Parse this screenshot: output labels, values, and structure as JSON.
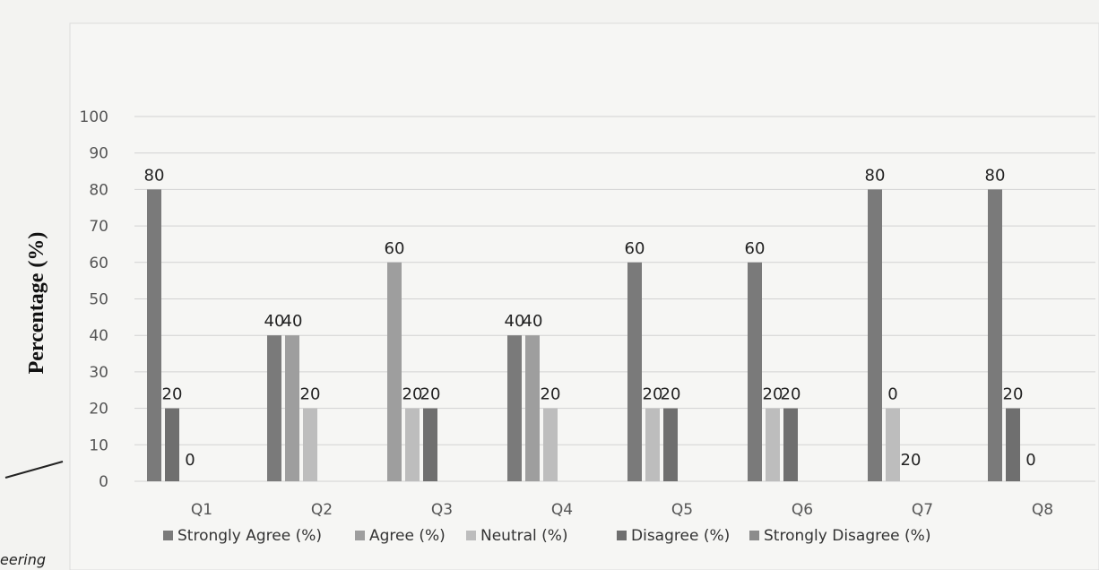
{
  "chart_data": {
    "type": "bar",
    "title": "",
    "xlabel": "",
    "ylabel": "Percentage (%)",
    "ylim": [
      0,
      100
    ],
    "yticks": [
      0,
      10,
      20,
      30,
      40,
      50,
      60,
      70,
      80,
      90,
      100
    ],
    "categories": [
      "Q1",
      "Q2",
      "Q3",
      "Q4",
      "Q5",
      "Q6",
      "Q7",
      "Q8"
    ],
    "grid": true,
    "legend_position": "bottom",
    "series": [
      {
        "name": "Strongly Agree (%)",
        "color": "#7a7a7a",
        "values": [
          80,
          40,
          0,
          40,
          60,
          60,
          80,
          80
        ]
      },
      {
        "name": "Agree (%)",
        "color": "#9e9e9e",
        "values": [
          0,
          40,
          60,
          40,
          0,
          0,
          0,
          0
        ]
      },
      {
        "name": "Neutral (%)",
        "color": "#bdbdbd",
        "values": [
          0,
          20,
          20,
          20,
          20,
          20,
          20,
          0
        ]
      },
      {
        "name": "Disagree (%)",
        "color": "#6f6f6f",
        "values": [
          20,
          0,
          20,
          0,
          20,
          20,
          0,
          20
        ]
      },
      {
        "name": "Strongly Disagree (%)",
        "color": "#8c8c8c",
        "values": [
          0,
          0,
          0,
          0,
          0,
          0,
          0,
          0
        ]
      }
    ],
    "data_labels": [
      [
        "80",
        "20",
        "0"
      ],
      [
        "40",
        "40",
        "20"
      ],
      [
        "60",
        "20",
        "20"
      ],
      [
        "40",
        "40",
        "20"
      ],
      [
        "60",
        "20",
        "20"
      ],
      [
        "60",
        "20",
        "20"
      ],
      [
        "80",
        "0",
        "20"
      ],
      [
        "80",
        "20",
        "0"
      ]
    ]
  },
  "page": {
    "stray_text": "eering"
  }
}
